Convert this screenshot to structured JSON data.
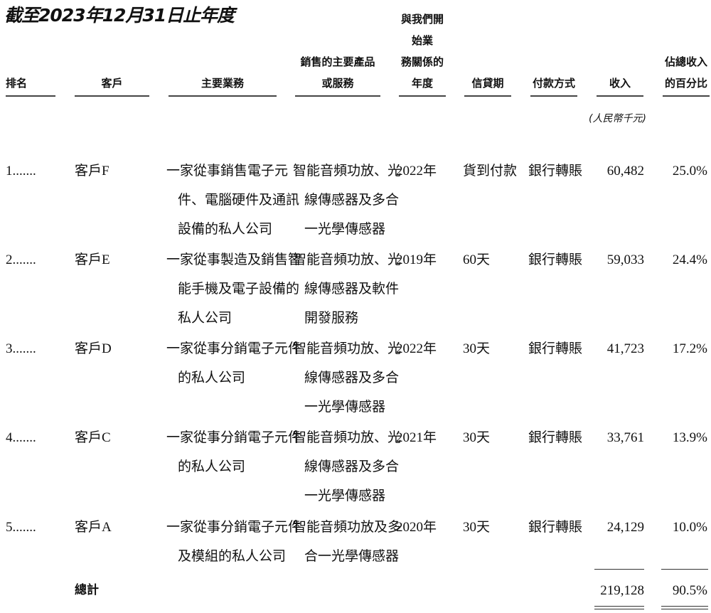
{
  "title": "截至2023年12月31日止年度",
  "headers": {
    "rank": "排名",
    "customer": "客戶",
    "business": "主要業務",
    "products_1": "銷售的主要產品",
    "products_2": "或服務",
    "year_1": "與我們開始業",
    "year_2": "務關係的年度",
    "credit": "信貸期",
    "payment": "付款方式",
    "revenue": "收入",
    "pct_1": "佔總收入",
    "pct_2": "的百分比"
  },
  "unit": "(人民幣千元)",
  "rows": [
    {
      "rank": "1.......",
      "customer": "客戶F",
      "business": [
        "一家從事銷售電子元",
        "件、電腦硬件及通訊",
        "設備的私人公司"
      ],
      "products": [
        "智能音頻功放、光",
        "線傳感器及多合",
        "一光學傳感器"
      ],
      "year": "2022年",
      "credit": "貨到付款",
      "payment": "銀行轉賬",
      "revenue": "60,482",
      "pct": "25.0%"
    },
    {
      "rank": "2.......",
      "customer": "客戶E",
      "business": [
        "一家從事製造及銷售智",
        "能手機及電子設備的",
        "私人公司"
      ],
      "products": [
        "智能音頻功放、光",
        "線傳感器及軟件",
        "開發服務"
      ],
      "year": "2019年",
      "credit": "60天",
      "payment": "銀行轉賬",
      "revenue": "59,033",
      "pct": "24.4%"
    },
    {
      "rank": "3.......",
      "customer": "客戶D",
      "business": [
        "一家從事分銷電子元件",
        "的私人公司"
      ],
      "products": [
        "智能音頻功放、光",
        "線傳感器及多合",
        "一光學傳感器"
      ],
      "year": "2022年",
      "credit": "30天",
      "payment": "銀行轉賬",
      "revenue": "41,723",
      "pct": "17.2%"
    },
    {
      "rank": "4.......",
      "customer": "客戶C",
      "business": [
        "一家從事分銷電子元件",
        "的私人公司"
      ],
      "products": [
        "智能音頻功放、光",
        "線傳感器及多合",
        "一光學傳感器"
      ],
      "year": "2021年",
      "credit": "30天",
      "payment": "銀行轉賬",
      "revenue": "33,761",
      "pct": "13.9%"
    },
    {
      "rank": "5.......",
      "customer": "客戶A",
      "business": [
        "一家從事分銷電子元件",
        "及模組的私人公司"
      ],
      "products": [
        "智能音頻功放及多",
        "合一光學傳感器"
      ],
      "year": "2020年",
      "credit": "30天",
      "payment": "銀行轉賬",
      "revenue": "24,129",
      "pct": "10.0%"
    }
  ],
  "total": {
    "label": "總計",
    "revenue": "219,128",
    "pct": "90.5%"
  }
}
